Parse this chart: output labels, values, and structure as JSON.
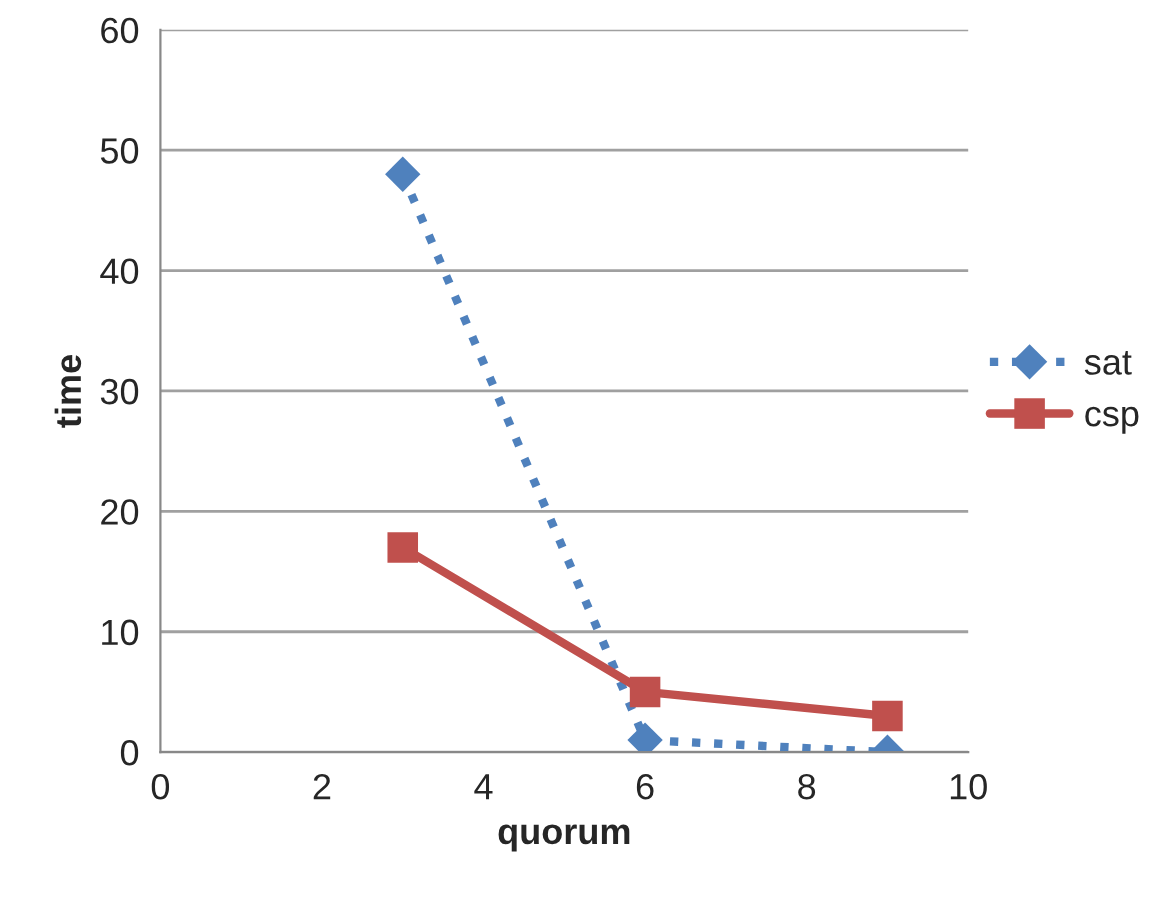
{
  "chart_data": {
    "type": "line",
    "xlabel": "quorum",
    "ylabel": "time",
    "series": [
      {
        "name": "sat",
        "color": "#4f81bd",
        "x": [
          3,
          6,
          9
        ],
        "values": [
          48,
          1,
          0
        ],
        "marker": "diamond",
        "line_style": "dotted"
      },
      {
        "name": "csp",
        "color": "#c0504d",
        "x": [
          3,
          6,
          9
        ],
        "values": [
          17,
          5,
          3
        ],
        "marker": "square",
        "line_style": "solid"
      }
    ],
    "xlim": [
      0,
      10
    ],
    "xticks": [
      0,
      2,
      4,
      6,
      8,
      10
    ],
    "ylim": [
      0,
      60
    ],
    "yticks": [
      0,
      10,
      20,
      30,
      40,
      50,
      60
    ],
    "grid": "y",
    "legend": "right"
  }
}
